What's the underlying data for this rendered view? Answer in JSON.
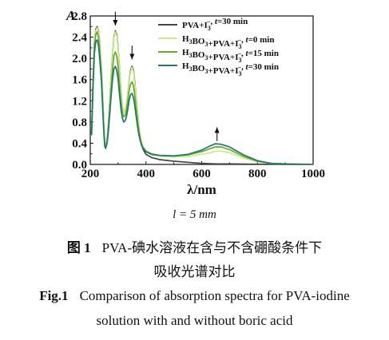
{
  "chart_data": {
    "type": "line",
    "y_axis_label": "A",
    "x_axis_label": "λ/nm",
    "xlim": [
      200,
      1000
    ],
    "ylim": [
      0.0,
      2.8
    ],
    "x_ticks": [
      "200",
      "400",
      "600",
      "800",
      "1000"
    ],
    "y_ticks": [
      "0.0",
      "0.4",
      "0.8",
      "1.2",
      "1.6",
      "2.0",
      "2.4",
      "2.8"
    ],
    "grid": false,
    "legend_placement": "top-right",
    "series": [
      {
        "name": "PVA+I3-, t=30 min",
        "legend_parts": [
          {
            "t": "PVA+I",
            "s": "",
            "u": ""
          },
          {
            "t": "",
            "s": "3",
            "u": "−"
          },
          {
            "t": ", ",
            "s": "",
            "u": ""
          },
          {
            "t": "t",
            "i": true
          },
          {
            "t": "=30 min"
          }
        ],
        "color": "#454545",
        "points": [
          [
            205,
            0.6
          ],
          [
            210,
            1.6
          ],
          [
            215,
            2.3
          ],
          [
            220,
            2.55
          ],
          [
            225,
            2.6
          ],
          [
            230,
            2.5
          ],
          [
            235,
            2.2
          ],
          [
            240,
            1.8
          ],
          [
            245,
            1.2
          ],
          [
            248,
            0.8
          ],
          [
            252,
            0.42
          ],
          [
            255,
            0.35
          ],
          [
            260,
            0.45
          ],
          [
            265,
            0.75
          ],
          [
            270,
            1.2
          ],
          [
            275,
            1.7
          ],
          [
            280,
            2.05
          ],
          [
            285,
            2.4
          ],
          [
            290,
            2.52
          ],
          [
            295,
            2.45
          ],
          [
            300,
            2.2
          ],
          [
            305,
            1.8
          ],
          [
            310,
            1.4
          ],
          [
            315,
            1.1
          ],
          [
            320,
            0.98
          ],
          [
            325,
            1.0
          ],
          [
            330,
            1.12
          ],
          [
            335,
            1.35
          ],
          [
            340,
            1.6
          ],
          [
            345,
            1.78
          ],
          [
            350,
            1.85
          ],
          [
            355,
            1.78
          ],
          [
            360,
            1.55
          ],
          [
            365,
            1.25
          ],
          [
            370,
            0.95
          ],
          [
            375,
            0.7
          ],
          [
            380,
            0.5
          ],
          [
            385,
            0.36
          ],
          [
            390,
            0.28
          ],
          [
            400,
            0.19
          ],
          [
            420,
            0.13
          ],
          [
            450,
            0.09
          ],
          [
            500,
            0.06
          ],
          [
            550,
            0.04
          ],
          [
            600,
            0.02
          ],
          [
            650,
            0.01
          ],
          [
            700,
            0.01
          ],
          [
            800,
            0.005
          ],
          [
            1000,
            0.0
          ]
        ]
      },
      {
        "name": "H3BO3+PVA+I3-, t=0 min",
        "legend_parts": [
          {
            "t": "H"
          },
          {
            "t": "",
            "s": "3"
          },
          {
            "t": "BO"
          },
          {
            "t": "",
            "s": "3"
          },
          {
            "t": "+PVA+I"
          },
          {
            "t": "",
            "s": "3",
            "u": "−"
          },
          {
            "t": ", "
          },
          {
            "t": "t",
            "i": true
          },
          {
            "t": "=0 min"
          }
        ],
        "color": "#c8ec88",
        "points": [
          [
            205,
            0.6
          ],
          [
            210,
            1.6
          ],
          [
            215,
            2.3
          ],
          [
            220,
            2.52
          ],
          [
            225,
            2.58
          ],
          [
            230,
            2.48
          ],
          [
            235,
            2.18
          ],
          [
            240,
            1.8
          ],
          [
            245,
            1.2
          ],
          [
            248,
            0.8
          ],
          [
            252,
            0.42
          ],
          [
            255,
            0.35
          ],
          [
            260,
            0.45
          ],
          [
            265,
            0.75
          ],
          [
            270,
            1.2
          ],
          [
            275,
            1.7
          ],
          [
            280,
            2.02
          ],
          [
            285,
            2.38
          ],
          [
            290,
            2.5
          ],
          [
            295,
            2.42
          ],
          [
            300,
            2.18
          ],
          [
            305,
            1.78
          ],
          [
            310,
            1.38
          ],
          [
            315,
            1.1
          ],
          [
            320,
            0.98
          ],
          [
            325,
            1.0
          ],
          [
            330,
            1.12
          ],
          [
            335,
            1.35
          ],
          [
            340,
            1.58
          ],
          [
            345,
            1.75
          ],
          [
            350,
            1.83
          ],
          [
            355,
            1.75
          ],
          [
            360,
            1.52
          ],
          [
            365,
            1.25
          ],
          [
            370,
            0.95
          ],
          [
            375,
            0.72
          ],
          [
            380,
            0.52
          ],
          [
            385,
            0.4
          ],
          [
            390,
            0.32
          ],
          [
            400,
            0.24
          ],
          [
            420,
            0.18
          ],
          [
            450,
            0.15
          ],
          [
            500,
            0.14
          ],
          [
            550,
            0.15
          ],
          [
            600,
            0.19
          ],
          [
            630,
            0.22
          ],
          [
            650,
            0.25
          ],
          [
            670,
            0.25
          ],
          [
            700,
            0.22
          ],
          [
            750,
            0.12
          ],
          [
            800,
            0.05
          ],
          [
            850,
            0.02
          ],
          [
            900,
            0.01
          ],
          [
            1000,
            0.0
          ]
        ]
      },
      {
        "name": "H3BO3+PVA+I3-, t=15 min",
        "legend_parts": [
          {
            "t": "H"
          },
          {
            "t": "",
            "s": "3"
          },
          {
            "t": "BO"
          },
          {
            "t": "",
            "s": "3"
          },
          {
            "t": "+PVA+I"
          },
          {
            "t": "",
            "s": "3",
            "u": "−"
          },
          {
            "t": ", "
          },
          {
            "t": "t",
            "i": true
          },
          {
            "t": "=15 min"
          }
        ],
        "color": "#6aa82a",
        "points": [
          [
            205,
            0.6
          ],
          [
            210,
            1.55
          ],
          [
            215,
            2.25
          ],
          [
            220,
            2.45
          ],
          [
            225,
            2.5
          ],
          [
            230,
            2.38
          ],
          [
            235,
            2.05
          ],
          [
            240,
            1.7
          ],
          [
            245,
            1.1
          ],
          [
            248,
            0.75
          ],
          [
            252,
            0.38
          ],
          [
            255,
            0.33
          ],
          [
            260,
            0.42
          ],
          [
            265,
            0.7
          ],
          [
            270,
            1.05
          ],
          [
            275,
            1.45
          ],
          [
            280,
            1.8
          ],
          [
            285,
            2.05
          ],
          [
            290,
            2.12
          ],
          [
            295,
            2.05
          ],
          [
            300,
            1.85
          ],
          [
            305,
            1.5
          ],
          [
            310,
            1.2
          ],
          [
            315,
            0.98
          ],
          [
            320,
            0.9
          ],
          [
            325,
            0.92
          ],
          [
            330,
            1.02
          ],
          [
            335,
            1.2
          ],
          [
            340,
            1.4
          ],
          [
            345,
            1.52
          ],
          [
            350,
            1.56
          ],
          [
            355,
            1.48
          ],
          [
            360,
            1.3
          ],
          [
            365,
            1.05
          ],
          [
            370,
            0.82
          ],
          [
            375,
            0.62
          ],
          [
            380,
            0.47
          ],
          [
            385,
            0.38
          ],
          [
            390,
            0.32
          ],
          [
            400,
            0.25
          ],
          [
            420,
            0.2
          ],
          [
            450,
            0.17
          ],
          [
            500,
            0.16
          ],
          [
            550,
            0.18
          ],
          [
            600,
            0.24
          ],
          [
            630,
            0.3
          ],
          [
            650,
            0.33
          ],
          [
            670,
            0.33
          ],
          [
            700,
            0.28
          ],
          [
            750,
            0.15
          ],
          [
            800,
            0.06
          ],
          [
            850,
            0.02
          ],
          [
            900,
            0.01
          ],
          [
            1000,
            0.0
          ]
        ]
      },
      {
        "name": "H3BO3+PVA+I3-, t=30 min",
        "legend_parts": [
          {
            "t": "H"
          },
          {
            "t": "",
            "s": "3"
          },
          {
            "t": "BO"
          },
          {
            "t": "",
            "s": "3"
          },
          {
            "t": "+PVA+I"
          },
          {
            "t": "",
            "s": "3",
            "u": "−"
          },
          {
            "t": ", "
          },
          {
            "t": "t",
            "i": true
          },
          {
            "t": "=30 min"
          }
        ],
        "color": "#1f7a6c",
        "points": [
          [
            205,
            0.55
          ],
          [
            210,
            1.45
          ],
          [
            215,
            2.1
          ],
          [
            220,
            2.32
          ],
          [
            225,
            2.35
          ],
          [
            230,
            2.22
          ],
          [
            235,
            1.92
          ],
          [
            240,
            1.55
          ],
          [
            245,
            1.0
          ],
          [
            248,
            0.68
          ],
          [
            252,
            0.35
          ],
          [
            255,
            0.3
          ],
          [
            260,
            0.38
          ],
          [
            265,
            0.62
          ],
          [
            270,
            0.95
          ],
          [
            275,
            1.3
          ],
          [
            280,
            1.6
          ],
          [
            285,
            1.8
          ],
          [
            290,
            1.85
          ],
          [
            295,
            1.78
          ],
          [
            300,
            1.6
          ],
          [
            305,
            1.32
          ],
          [
            310,
            1.05
          ],
          [
            315,
            0.88
          ],
          [
            320,
            0.8
          ],
          [
            325,
            0.82
          ],
          [
            330,
            0.9
          ],
          [
            335,
            1.05
          ],
          [
            340,
            1.22
          ],
          [
            345,
            1.32
          ],
          [
            350,
            1.34
          ],
          [
            355,
            1.26
          ],
          [
            360,
            1.1
          ],
          [
            365,
            0.9
          ],
          [
            370,
            0.7
          ],
          [
            375,
            0.55
          ],
          [
            380,
            0.43
          ],
          [
            385,
            0.35
          ],
          [
            390,
            0.3
          ],
          [
            400,
            0.24
          ],
          [
            420,
            0.19
          ],
          [
            450,
            0.17
          ],
          [
            500,
            0.16
          ],
          [
            550,
            0.19
          ],
          [
            600,
            0.27
          ],
          [
            630,
            0.35
          ],
          [
            650,
            0.39
          ],
          [
            670,
            0.38
          ],
          [
            700,
            0.33
          ],
          [
            750,
            0.18
          ],
          [
            800,
            0.07
          ],
          [
            850,
            0.02
          ],
          [
            900,
            0.01
          ],
          [
            1000,
            0.0
          ]
        ]
      }
    ],
    "annotations": [
      {
        "type": "down-arrow",
        "x": 290,
        "y_tip": 2.62,
        "y_tail": 2.88
      },
      {
        "type": "down-arrow",
        "x": 350,
        "y_tip": 1.98,
        "y_tail": 2.24
      },
      {
        "type": "up-arrow",
        "x": 655,
        "y_tip": 0.7,
        "y_tail": 0.44
      }
    ]
  },
  "caption": {
    "condition": "l = 5  mm",
    "cn_label": "图 1",
    "cn_line1": "PVA-碘水溶液在含与不含硼酸条件下",
    "cn_line2": "吸收光谱对比",
    "en_label": "Fig.1",
    "en_line1": "Comparison of absorption spectra for PVA-iodine",
    "en_line2": "solution with and without boric acid"
  }
}
